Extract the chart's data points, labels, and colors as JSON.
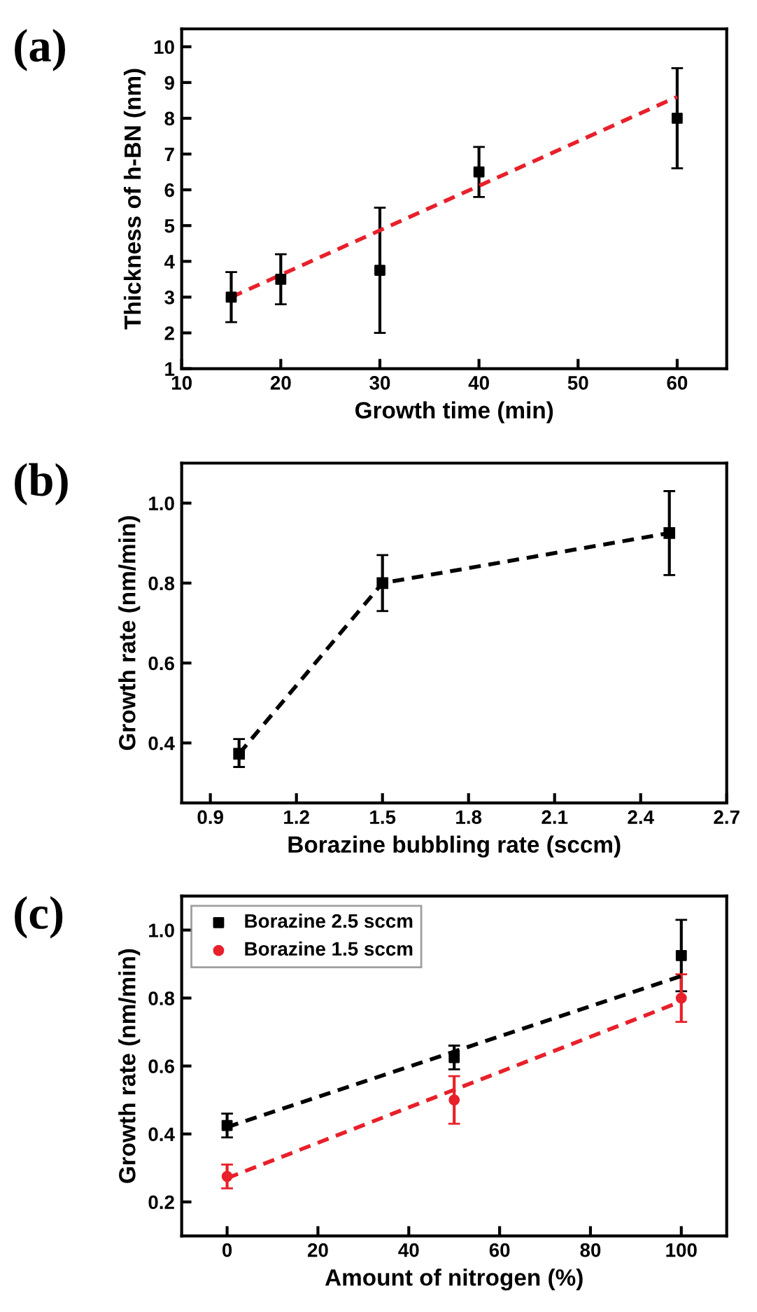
{
  "chart_data": [
    {
      "type": "scatter",
      "title": "(a)",
      "xlabel": "Growth time (min)",
      "ylabel": "Thickness of h-BN (nm)",
      "xlim": [
        10,
        65
      ],
      "ylim": [
        1,
        10.5
      ],
      "xticks": [
        10,
        20,
        30,
        40,
        50,
        60
      ],
      "yticks": [
        1,
        2,
        3,
        4,
        5,
        6,
        7,
        8,
        9,
        10
      ],
      "grid": false,
      "legend": false,
      "series": [
        {
          "color": "#000000",
          "marker": "square",
          "x": [
            15,
            20,
            30,
            40,
            60
          ],
          "values": [
            3.0,
            3.5,
            3.75,
            6.5,
            8.0
          ],
          "errors": [
            [
              2.3,
              3.7
            ],
            [
              2.8,
              4.2
            ],
            [
              2.0,
              5.5
            ],
            [
              5.8,
              7.2
            ],
            [
              6.6,
              9.4
            ]
          ]
        },
        {
          "type": "line",
          "color": "#e8202a",
          "line_style": "dashed",
          "marker": "none",
          "x": [
            15,
            60
          ],
          "values": [
            3.0,
            8.6
          ]
        }
      ]
    },
    {
      "type": "line",
      "title": "(b)",
      "xlabel": "Borazine bubbling rate (sccm)",
      "ylabel": "Growth rate (nm/min)",
      "xlim": [
        0.8,
        2.7
      ],
      "ylim": [
        0.25,
        1.1
      ],
      "xticks": [
        {
          "value": 0.9,
          "label": "0.9"
        },
        {
          "value": 1.2,
          "label": "1.2"
        },
        {
          "value": 1.5,
          "label": "1.5"
        },
        {
          "value": 1.8,
          "label": "1.8"
        },
        {
          "value": 2.1,
          "label": "2.1"
        },
        {
          "value": 2.4,
          "label": "2.4"
        },
        {
          "value": 2.7,
          "label": "2.7"
        }
      ],
      "yticks": [
        {
          "value": 0.4,
          "label": "0.4"
        },
        {
          "value": 0.6,
          "label": "0.6"
        },
        {
          "value": 0.8,
          "label": "0.8"
        },
        {
          "value": 1.0,
          "label": "1.0"
        }
      ],
      "grid": false,
      "legend": false,
      "series": [
        {
          "color": "#000000",
          "marker": "square",
          "line_style": "dashed",
          "x": [
            1.0,
            1.5,
            2.5
          ],
          "values": [
            0.373,
            0.8,
            0.925
          ],
          "errors": [
            [
              0.34,
              0.41
            ],
            [
              0.73,
              0.87
            ],
            [
              0.82,
              1.03
            ]
          ]
        }
      ]
    },
    {
      "type": "scatter",
      "title": "(c)",
      "xlabel": "Amount of nitrogen (%)",
      "ylabel": "Growth rate (nm/min)",
      "xlim": [
        -10,
        110
      ],
      "ylim": [
        0.1,
        1.1
      ],
      "xticks": [
        0,
        20,
        40,
        60,
        80,
        100
      ],
      "yticks": [
        {
          "value": 0.2,
          "label": "0.2"
        },
        {
          "value": 0.4,
          "label": "0.4"
        },
        {
          "value": 0.6,
          "label": "0.6"
        },
        {
          "value": 0.8,
          "label": "0.8"
        },
        {
          "value": 1.0,
          "label": "1.0"
        }
      ],
      "grid": false,
      "legend": "top left",
      "series": [
        {
          "name": "Borazine 2.5 sccm",
          "color": "#000000",
          "marker": "square",
          "x": [
            0,
            50,
            100
          ],
          "values": [
            0.425,
            0.625,
            0.925
          ],
          "errors": [
            [
              0.39,
              0.46
            ],
            [
              0.59,
              0.66
            ],
            [
              0.82,
              1.03
            ]
          ]
        },
        {
          "name": "Borazine 1.5 sccm",
          "color": "#e8202a",
          "marker": "circle",
          "x": [
            0,
            50,
            100
          ],
          "values": [
            0.275,
            0.5,
            0.8
          ],
          "errors": [
            [
              0.24,
              0.31
            ],
            [
              0.43,
              0.57
            ],
            [
              0.73,
              0.87
            ]
          ]
        },
        {
          "type": "line",
          "color": "#000000",
          "line_style": "dashed",
          "marker": "none",
          "x": [
            0,
            100
          ],
          "values": [
            0.42,
            0.865
          ]
        },
        {
          "type": "line",
          "color": "#e8202a",
          "line_style": "dashed",
          "marker": "none",
          "x": [
            0,
            100
          ],
          "values": [
            0.27,
            0.79
          ]
        }
      ]
    }
  ]
}
